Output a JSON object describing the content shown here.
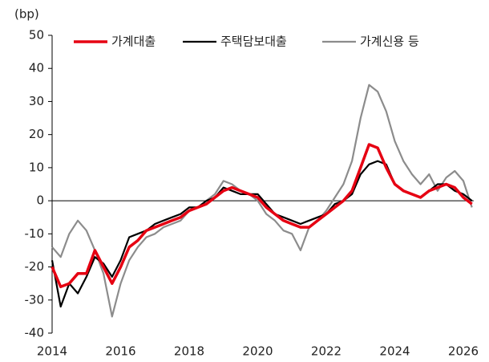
{
  "chart_data": {
    "type": "line",
    "ylabel": "(bp)",
    "x": [
      2014.0,
      2014.25,
      2014.5,
      2014.75,
      2015.0,
      2015.25,
      2015.5,
      2015.75,
      2016.0,
      2016.25,
      2016.5,
      2016.75,
      2017.0,
      2017.25,
      2017.5,
      2017.75,
      2018.0,
      2018.25,
      2018.5,
      2018.75,
      2019.0,
      2019.25,
      2019.5,
      2019.75,
      2020.0,
      2020.25,
      2020.5,
      2020.75,
      2021.0,
      2021.25,
      2021.5,
      2021.75,
      2022.0,
      2022.25,
      2022.5,
      2022.75,
      2023.0,
      2023.25,
      2023.5,
      2023.75,
      2024.0,
      2024.25,
      2024.5,
      2024.75,
      2025.0,
      2025.25,
      2025.5,
      2025.75,
      2026.0,
      2026.25
    ],
    "series": [
      {
        "name": "가계대출",
        "color": "#e60012",
        "values": [
          -20,
          -26,
          -25,
          -22,
          -22,
          -15,
          -20,
          -25,
          -20,
          -14,
          -12,
          -9,
          -8,
          -7,
          -6,
          -5,
          -3,
          -2,
          -1,
          1,
          3,
          4,
          3,
          2,
          1,
          -2,
          -4,
          -6,
          -7,
          -8,
          -8,
          -6,
          -4,
          -2,
          0,
          3,
          10,
          17,
          16,
          10,
          5,
          3,
          2,
          1,
          3,
          4,
          5,
          4,
          1,
          -1
        ]
      },
      {
        "name": "주택담보대출",
        "color": "#000000",
        "values": [
          -18,
          -32,
          -25,
          -28,
          -23,
          -17,
          -19,
          -23,
          -18,
          -11,
          -10,
          -9,
          -7,
          -6,
          -5,
          -4,
          -2,
          -2,
          0,
          1,
          4,
          3,
          2,
          2,
          2,
          -1,
          -4,
          -5,
          -6,
          -7,
          -6,
          -5,
          -4,
          -1,
          0,
          2,
          8,
          11,
          12,
          11,
          5,
          3,
          2,
          1,
          3,
          5,
          5,
          3,
          2,
          0
        ]
      },
      {
        "name": "가계신용 등",
        "color": "#8c8c8c",
        "values": [
          -14,
          -17,
          -10,
          -6,
          -9,
          -15,
          -22,
          -35,
          -25,
          -18,
          -14,
          -11,
          -10,
          -8,
          -7,
          -6,
          -3,
          -2,
          0,
          2,
          6,
          5,
          3,
          2,
          0,
          -4,
          -6,
          -9,
          -10,
          -15,
          -8,
          -6,
          -3,
          1,
          5,
          12,
          25,
          35,
          33,
          27,
          18,
          12,
          8,
          5,
          8,
          3,
          7,
          9,
          6,
          -2
        ]
      }
    ],
    "xlim": [
      2014,
      2026.3
    ],
    "xticks": [
      2014,
      2016,
      2018,
      2020,
      2022,
      2024,
      2026
    ],
    "ylim": [
      -40,
      50
    ],
    "yticks": [
      -40,
      -30,
      -20,
      -10,
      0,
      10,
      20,
      30,
      40,
      50
    ],
    "legend": "top"
  }
}
